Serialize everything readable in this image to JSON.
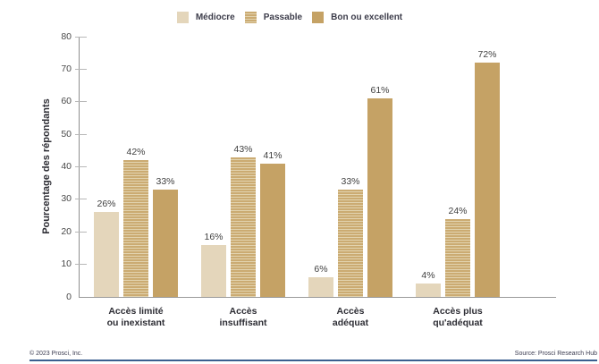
{
  "chart_data": {
    "type": "bar",
    "title": "",
    "ylabel": "Pourcentage des répondants",
    "ylim": [
      0,
      80
    ],
    "yticks": [
      0,
      10,
      20,
      30,
      40,
      50,
      60,
      70,
      80
    ],
    "categories": [
      [
        "Accès limité",
        "ou inexistant"
      ],
      [
        "Accès",
        "insuffisant"
      ],
      [
        "Accès",
        "adéquat"
      ],
      [
        "Accès plus",
        "qu'adéquat"
      ]
    ],
    "series": [
      {
        "name": "Médiocre",
        "pattern": "solid",
        "color": "#e4d6bb",
        "values": [
          26,
          16,
          6,
          4
        ]
      },
      {
        "name": "Passable",
        "pattern": "hstripes",
        "color": "#cbab72",
        "stripe_color": "#e2d3af",
        "values": [
          42,
          43,
          33,
          24
        ]
      },
      {
        "name": "Bon ou excellent",
        "pattern": "solid",
        "color": "#c5a265",
        "values": [
          33,
          41,
          61,
          72
        ]
      }
    ],
    "value_labels": [
      [
        "26%",
        "16%",
        "6%",
        "4%"
      ],
      [
        "42%",
        "43%",
        "33%",
        "24%"
      ],
      [
        "33%",
        "41%",
        "61%",
        "72%"
      ]
    ],
    "legend_position": "top-center",
    "grid": false
  },
  "footer": {
    "copyright": "© 2023 Prosci, Inc.",
    "source": "Source: Prosci Research Hub",
    "divider_color": "#3a5f8f"
  },
  "colors": {
    "axis": "#8f8f8f",
    "tick": "#b8b8b8",
    "value_text": "#3f3f3f",
    "category_text": "#2d2d34",
    "legend_text": "#3c3c4a"
  }
}
